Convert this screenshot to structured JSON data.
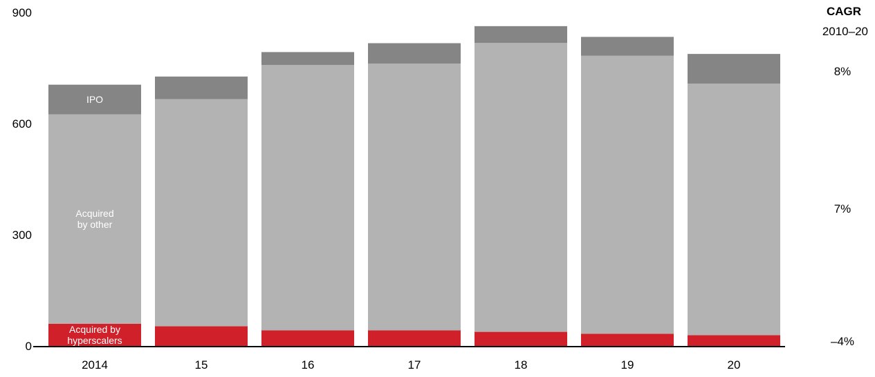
{
  "chart_data": {
    "type": "bar",
    "stacked": true,
    "categories": [
      "2014",
      "15",
      "16",
      "17",
      "18",
      "19",
      "20"
    ],
    "series": [
      {
        "name": "Acquired by hyperscalers",
        "values": [
          60,
          53,
          42,
          42,
          38,
          33,
          29
        ],
        "color": "#d0202a"
      },
      {
        "name": "Acquired by other",
        "values": [
          565,
          613,
          716,
          720,
          780,
          750,
          679
        ],
        "color": "#b3b3b3"
      },
      {
        "name": "IPO",
        "values": [
          80,
          61,
          35,
          55,
          45,
          51,
          80
        ],
        "color": "#858585"
      }
    ],
    "ylim": [
      0,
      900
    ],
    "yticks": [
      0,
      300,
      600,
      900
    ],
    "segment_labels": {
      "ipo": "IPO",
      "other": [
        "Acquired",
        "by other"
      ],
      "hyperscalers": [
        "Acquired by",
        "hyperscalers"
      ]
    },
    "cagr": {
      "title": "CAGR",
      "subtitle": "2010–20",
      "values": [
        "8%",
        "7%",
        "–4%"
      ]
    },
    "grid": false,
    "legend": "inline"
  }
}
